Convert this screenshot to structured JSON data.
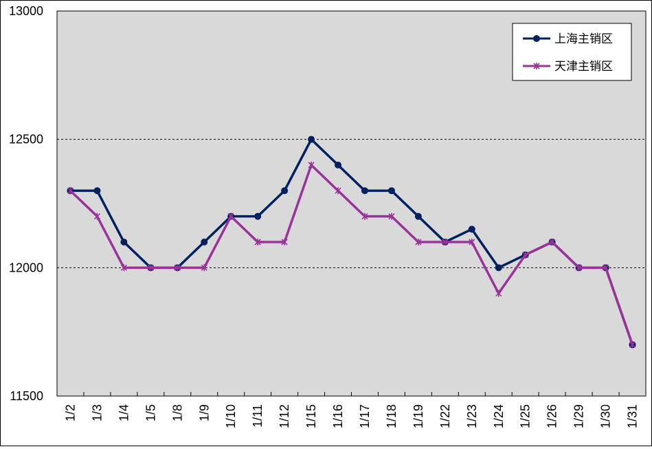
{
  "chart_data": {
    "type": "line",
    "categories": [
      "1/2",
      "1/3",
      "1/4",
      "1/5",
      "1/8",
      "1/9",
      "1/10",
      "1/11",
      "1/12",
      "1/15",
      "1/16",
      "1/17",
      "1/18",
      "1/19",
      "1/22",
      "1/23",
      "1/24",
      "1/25",
      "1/26",
      "1/29",
      "1/30",
      "1/31"
    ],
    "ylim": [
      11500,
      13000
    ],
    "yticks": [
      11500,
      12000,
      12500,
      13000
    ],
    "grid": "horizontal dashed at 12000 and 12500",
    "legend_position": "top-right",
    "plot_background": "#d9d9d9",
    "series": [
      {
        "name": "上海主销区",
        "color": "#002060",
        "marker": "circle",
        "values": [
          12300,
          12300,
          12100,
          12000,
          12000,
          12100,
          12200,
          12200,
          12300,
          12500,
          12400,
          12300,
          12300,
          12200,
          12100,
          12150,
          12000,
          12050,
          12100,
          12000,
          12000,
          11700
        ]
      },
      {
        "name": "天津主销区",
        "color": "#993399",
        "marker": "star",
        "values": [
          12300,
          12200,
          12000,
          12000,
          12000,
          12000,
          12200,
          12100,
          12100,
          12400,
          12300,
          12200,
          12200,
          12100,
          12100,
          12100,
          11900,
          12050,
          12100,
          12000,
          12000,
          11700
        ]
      }
    ]
  }
}
